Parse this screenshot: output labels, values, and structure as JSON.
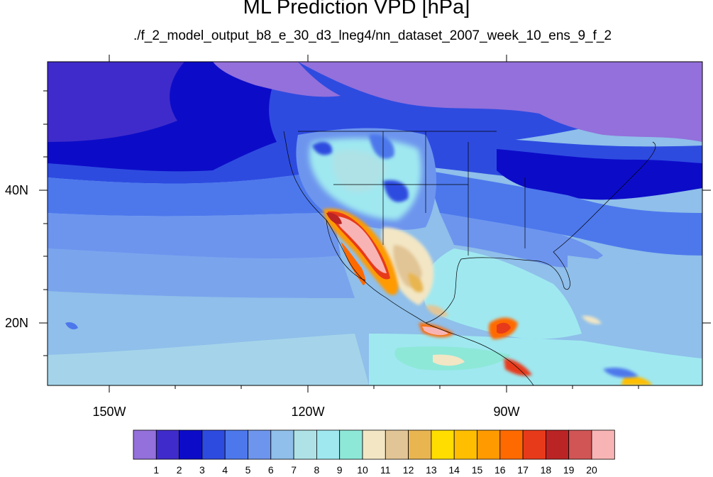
{
  "chart_data": {
    "type": "heatmap",
    "title": "ML Prediction VPD [hPa]",
    "subtitle": "./f_2_model_output_b8_e_30_d3_lneg4/nn_dataset_2007_week_10_ens_9_f_2",
    "units": "hPa",
    "x_axis": {
      "ticks": [
        "150W",
        "120W",
        "90W"
      ],
      "range": [
        -160,
        -60
      ]
    },
    "y_axis": {
      "ticks": [
        "40N",
        "20N"
      ],
      "range": [
        10,
        58
      ]
    },
    "colorbar": {
      "labels": [
        "1",
        "2",
        "3",
        "4",
        "5",
        "6",
        "7",
        "8",
        "9",
        "10",
        "11",
        "12",
        "13",
        "14",
        "15",
        "16",
        "17",
        "18",
        "19",
        "20"
      ],
      "colors": [
        "#9370DB",
        "#3F2BCB",
        "#0C0CC8",
        "#2E4BE0",
        "#4D78EC",
        "#6D95EE",
        "#8FBFEA",
        "#AEE2E6",
        "#9FE8F0",
        "#8DE8D8",
        "#F2E6C4",
        "#E2C596",
        "#E8B550",
        "#FFDD00",
        "#FFBE00",
        "#FF9A00",
        "#FF6A00",
        "#E73A1A",
        "#BB2424",
        "#D15555",
        "#F8B4B4"
      ]
    },
    "regions": {
      "canada_north": "1",
      "north_pacific": "2-3",
      "mid_pacific": "4-6",
      "subtropical_pacific": "7-8",
      "eastern_us": "3-5",
      "gulf_of_mexico": "8-9",
      "caribbean": "8-10",
      "us_west_interior": "5-9",
      "sonoran_desert_baja": "15-20",
      "central_america_interior": "13-18"
    }
  }
}
